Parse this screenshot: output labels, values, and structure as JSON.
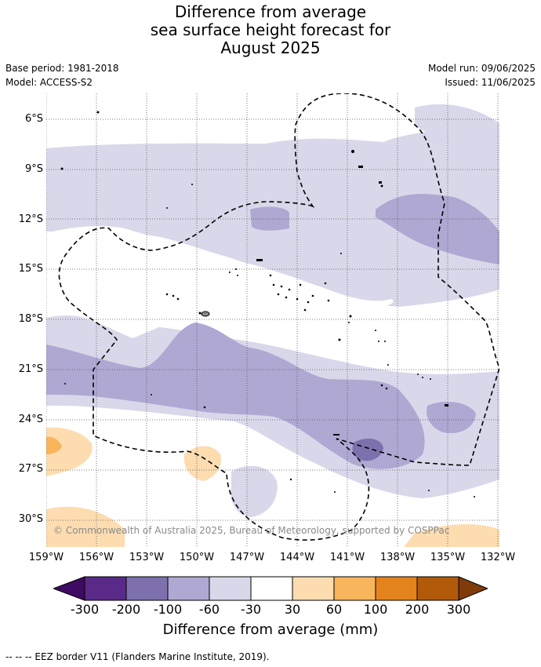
{
  "title": {
    "line1": "Difference from average",
    "line2": "sea surface height forecast for",
    "line3": "August 2025"
  },
  "info": {
    "base_period": "Base period: 1981-2018",
    "model": "Model: ACCESS-S2",
    "model_run": "Model run: 09/06/2025",
    "issued": "Issued: 11/06/2025"
  },
  "map": {
    "latitude_labels": [
      "6°S",
      "9°S",
      "12°S",
      "15°S",
      "18°S",
      "21°S",
      "24°S",
      "27°S",
      "30°S"
    ],
    "longitude_labels": [
      "159°W",
      "156°W",
      "153°W",
      "150°W",
      "147°W",
      "144°W",
      "141°W",
      "138°W",
      "135°W",
      "132°W"
    ],
    "lon_range": [
      -159,
      -132
    ],
    "lat_range": [
      -31.5,
      -4.5
    ],
    "copyright": "© Commonwealth of Australia 2025, Bureau of Meteorology, supported by COSPPac"
  },
  "colorbar": {
    "title": "Difference from average (mm)",
    "tick_labels": [
      "-300",
      "-200",
      "-100",
      "-60",
      "-30",
      "30",
      "60",
      "100",
      "200",
      "300"
    ],
    "colors": [
      "#3f0a62",
      "#5a2a88",
      "#7e70ad",
      "#aea8d2",
      "#d8d8ea",
      "#ffffff",
      "#fddcb0",
      "#f9b55c",
      "#e4831b",
      "#b15a0a",
      "#7f3b08"
    ]
  },
  "footnote": "--  --  -- EEZ border V11 (Flanders Marine Institute, 2019)."
}
